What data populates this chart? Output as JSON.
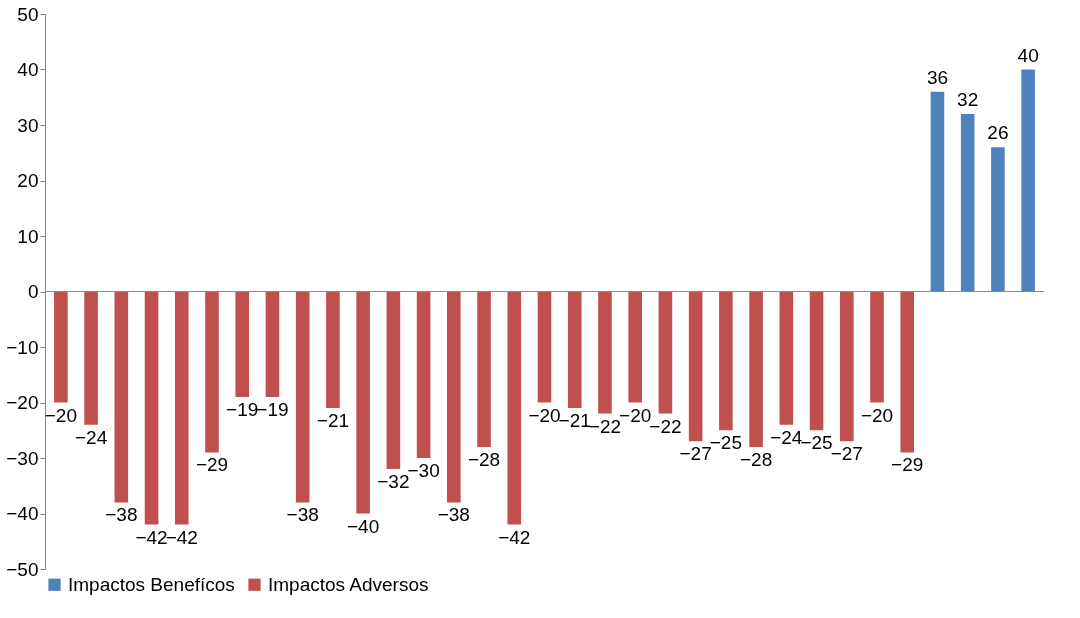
{
  "chart_data": {
    "type": "bar",
    "categories": [
      null,
      null,
      null,
      null,
      null,
      null,
      null,
      null,
      null,
      null,
      null,
      null,
      null,
      null,
      null,
      null,
      null,
      null,
      null,
      null,
      null,
      null,
      null,
      null,
      null,
      null,
      null,
      null,
      null,
      null,
      null,
      null,
      null
    ],
    "series": [
      {
        "name": "Impactos Benefícos",
        "color": "#4f81bd",
        "values": [
          null,
          null,
          null,
          null,
          null,
          null,
          null,
          null,
          null,
          null,
          null,
          null,
          null,
          null,
          null,
          null,
          null,
          null,
          null,
          null,
          null,
          null,
          null,
          null,
          null,
          null,
          null,
          null,
          null,
          36,
          32,
          26,
          40
        ]
      },
      {
        "name": "Impactos Adversos",
        "color": "#c0504d",
        "values": [
          -20,
          -24,
          -38,
          -42,
          -42,
          -29,
          -19,
          -19,
          -38,
          -21,
          -40,
          -32,
          -30,
          -38,
          -28,
          -42,
          -20,
          -21,
          -22,
          -20,
          -22,
          -27,
          -25,
          -28,
          -24,
          -25,
          -27,
          -20,
          -29,
          null,
          null,
          null,
          null
        ]
      }
    ],
    "ylim": [
      -50,
      50
    ],
    "yticks": [
      -50,
      -40,
      -30,
      -20,
      -10,
      0,
      10,
      20,
      30,
      40,
      50
    ],
    "data_labels": true,
    "legend": "bottom"
  }
}
